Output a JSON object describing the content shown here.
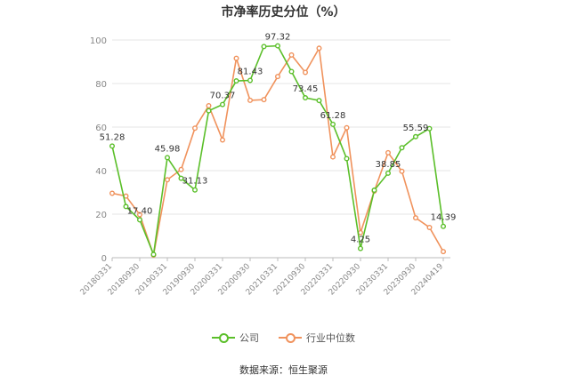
{
  "chart_data": {
    "type": "line",
    "title": "市净率历史分位（%）",
    "ylim": [
      0,
      100
    ],
    "yticks": [
      0,
      20,
      40,
      60,
      80,
      100
    ],
    "x": [
      "20180331",
      "20180630",
      "20180930",
      "20181231",
      "20190331",
      "20190630",
      "20190930",
      "20191231",
      "20200331",
      "20200630",
      "20200930",
      "20201231",
      "20210331",
      "20210630",
      "20210930",
      "20211231",
      "20220331",
      "20220630",
      "20220930",
      "20221231",
      "20230331",
      "20230630",
      "20230930",
      "20231231",
      "20240419"
    ],
    "xtick_labels": [
      "20180331",
      "20180930",
      "20190331",
      "20190930",
      "20200331",
      "20200930",
      "20210331",
      "20210930",
      "20220331",
      "20220930",
      "20230331",
      "20230930",
      "20240419"
    ],
    "series": [
      {
        "name": "公司",
        "color": "#5bbf2a",
        "values": [
          51.28,
          23.5,
          17.4,
          1.5,
          45.98,
          36.5,
          31.13,
          67.5,
          70.37,
          81.2,
          81.43,
          97.0,
          97.32,
          85.5,
          73.45,
          72.2,
          61.28,
          45.5,
          4.25,
          31.0,
          38.85,
          50.5,
          55.59,
          59.3,
          14.39
        ],
        "labels": {
          "0": "51.28",
          "2": "17.40",
          "4": "45.98",
          "6": "31.13",
          "8": "70.37",
          "10": "81.43",
          "12": "97.32",
          "14": "73.45",
          "16": "61.28",
          "18": "4.25",
          "20": "38.85",
          "22": "55.59",
          "24": "14.39"
        }
      },
      {
        "name": "行业中位数",
        "color": "#f0925c",
        "values": [
          29.6,
          28.3,
          19.8,
          1.2,
          35.8,
          40.5,
          59.5,
          69.8,
          54.1,
          91.6,
          72.3,
          72.6,
          83.2,
          93.1,
          85.1,
          96.2,
          46.3,
          59.7,
          11.5,
          30.6,
          48.2,
          39.7,
          18.3,
          13.9,
          2.8
        ]
      }
    ],
    "legend_position": "bottom",
    "grid": true
  },
  "source_text": "数据来源：恒生聚源"
}
